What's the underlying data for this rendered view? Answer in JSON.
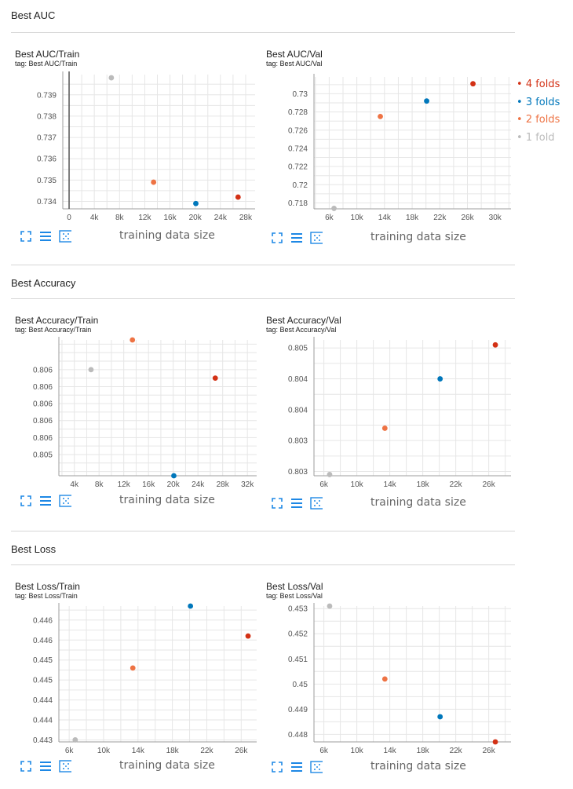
{
  "sections": [
    {
      "title": "Best AUC"
    },
    {
      "title": "Best Accuracy"
    },
    {
      "title": "Best Loss"
    }
  ],
  "legend": [
    {
      "label": "4 folds",
      "color": "#d33115"
    },
    {
      "label": "3 folds",
      "color": "#0077bb"
    },
    {
      "label": "2 folds",
      "color": "#ee7344"
    },
    {
      "label": "1 fold",
      "color": "#bbbbbb"
    }
  ],
  "xlabel": "training data size",
  "icons": [
    "fit-domain-icon",
    "toggle-log-icon",
    "data-bounds-icon"
  ],
  "chart_data": [
    {
      "type": "scatter",
      "title": "Best AUC/Train",
      "tag": "tag: Best AUC/Train",
      "xlim": [
        -1000,
        29500
      ],
      "ylim": [
        0.73365,
        0.73995
      ],
      "xticks": [
        0,
        4000,
        8000,
        12000,
        16000,
        20000,
        24000,
        28000
      ],
      "xtick_labels": [
        "0",
        "4k",
        "8k",
        "12k",
        "16k",
        "20k",
        "24k",
        "28k"
      ],
      "yticks": [
        0.734,
        0.735,
        0.736,
        0.737,
        0.738,
        0.739
      ],
      "ytick_labels": [
        "0.734",
        "0.735",
        "0.736",
        "0.737",
        "0.738",
        "0.739"
      ],
      "grid": true,
      "points": [
        {
          "series": "1 fold",
          "x": 6700,
          "y": 0.7398
        },
        {
          "series": "2 folds",
          "x": 13400,
          "y": 0.7349
        },
        {
          "series": "3 folds",
          "x": 20100,
          "y": 0.7339
        },
        {
          "series": "4 folds",
          "x": 26800,
          "y": 0.7342
        }
      ]
    },
    {
      "type": "scatter",
      "title": "Best AUC/Val",
      "tag": "tag: Best AUC/Val",
      "xlim": [
        3800,
        32300
      ],
      "ylim": [
        0.71735,
        0.73185
      ],
      "xticks": [
        6000,
        10000,
        14000,
        18000,
        22000,
        26000,
        30000
      ],
      "xtick_labels": [
        "6k",
        "10k",
        "14k",
        "18k",
        "22k",
        "26k",
        "30k"
      ],
      "yticks": [
        0.718,
        0.72,
        0.722,
        0.724,
        0.726,
        0.728,
        0.73
      ],
      "ytick_labels": [
        "0.718",
        "0.72",
        "0.722",
        "0.724",
        "0.726",
        "0.728",
        "0.73"
      ],
      "grid": true,
      "points": [
        {
          "series": "1 fold",
          "x": 6700,
          "y": 0.7174
        },
        {
          "series": "2 folds",
          "x": 13400,
          "y": 0.7275
        },
        {
          "series": "3 folds",
          "x": 20100,
          "y": 0.7292
        },
        {
          "series": "4 folds",
          "x": 26800,
          "y": 0.7311
        }
      ]
    },
    {
      "type": "scatter",
      "title": "Best Accuracy/Train",
      "tag": "tag: Best Accuracy/Train",
      "xlim": [
        1500,
        33500
      ],
      "ylim": [
        0.80475,
        0.80635
      ],
      "xticks": [
        4000,
        8000,
        12000,
        16000,
        20000,
        24000,
        28000,
        32000
      ],
      "xtick_labels": [
        "4k",
        "8k",
        "12k",
        "16k",
        "20k",
        "24k",
        "28k",
        "32k"
      ],
      "yticks": [
        0.805,
        0.8052,
        0.8054,
        0.8056,
        0.8058,
        0.806
      ],
      "ytick_labels": [
        "0.805",
        "0.806",
        "0.806",
        "0.806",
        "0.806",
        "0.806"
      ],
      "grid": true,
      "points": [
        {
          "series": "1 fold",
          "x": 6700,
          "y": 0.806
        },
        {
          "series": "2 folds",
          "x": 13400,
          "y": 0.80635
        },
        {
          "series": "3 folds",
          "x": 20100,
          "y": 0.80475
        },
        {
          "series": "4 folds",
          "x": 26800,
          "y": 0.8059
        }
      ]
    },
    {
      "type": "scatter",
      "title": "Best Accuracy/Val",
      "tag": "tag: Best Accuracy/Val",
      "xlim": [
        4800,
        28700
      ],
      "ylim": [
        0.80283,
        0.80503
      ],
      "xticks": [
        6000,
        10000,
        14000,
        18000,
        22000,
        26000
      ],
      "xtick_labels": [
        "6k",
        "10k",
        "14k",
        "18k",
        "22k",
        "26k"
      ],
      "yticks": [
        0.8029,
        0.8034,
        0.8039,
        0.8044,
        0.8049
      ],
      "ytick_labels": [
        "0.803",
        "0.803",
        "0.804",
        "0.804",
        "0.805",
        "0.805"
      ],
      "grid": true,
      "points": [
        {
          "series": "1 fold",
          "x": 6700,
          "y": 0.80285
        },
        {
          "series": "2 folds",
          "x": 13400,
          "y": 0.8036
        },
        {
          "series": "3 folds",
          "x": 20100,
          "y": 0.8044
        },
        {
          "series": "4 folds",
          "x": 26800,
          "y": 0.80495
        }
      ]
    },
    {
      "type": "scatter",
      "title": "Best Loss/Train",
      "tag": "tag: Best Loss/Train",
      "xlim": [
        4800,
        27800
      ],
      "ylim": [
        0.44295,
        0.44635
      ],
      "xticks": [
        6000,
        10000,
        14000,
        18000,
        22000,
        26000
      ],
      "xtick_labels": [
        "6k",
        "10k",
        "14k",
        "18k",
        "22k",
        "26k"
      ],
      "yticks": [
        0.443,
        0.4435,
        0.444,
        0.4445,
        0.445,
        0.4455,
        0.446
      ],
      "ytick_labels": [
        "0.443",
        "0.444",
        "0.444",
        "0.445",
        "0.445",
        "0.446",
        "0.446"
      ],
      "grid": true,
      "points": [
        {
          "series": "1 fold",
          "x": 6700,
          "y": 0.443
        },
        {
          "series": "2 folds",
          "x": 13400,
          "y": 0.4448
        },
        {
          "series": "3 folds",
          "x": 20100,
          "y": 0.44635
        },
        {
          "series": "4 folds",
          "x": 26800,
          "y": 0.4456
        }
      ]
    },
    {
      "type": "scatter",
      "title": "Best Loss/Val",
      "tag": "tag: Best Loss/Val",
      "xlim": [
        4800,
        28700
      ],
      "ylim": [
        0.4477,
        0.4531
      ],
      "xticks": [
        6000,
        10000,
        14000,
        18000,
        22000,
        26000
      ],
      "xtick_labels": [
        "6k",
        "10k",
        "14k",
        "18k",
        "22k",
        "26k"
      ],
      "yticks": [
        0.448,
        0.449,
        0.45,
        0.451,
        0.452,
        0.453
      ],
      "ytick_labels": [
        "0.448",
        "0.449",
        "0.45",
        "0.451",
        "0.452",
        "0.453"
      ],
      "grid": true,
      "points": [
        {
          "series": "1 fold",
          "x": 6700,
          "y": 0.4531
        },
        {
          "series": "2 folds",
          "x": 13400,
          "y": 0.4502
        },
        {
          "series": "3 folds",
          "x": 20100,
          "y": 0.4487
        },
        {
          "series": "4 folds",
          "x": 26800,
          "y": 0.4477
        }
      ]
    }
  ]
}
